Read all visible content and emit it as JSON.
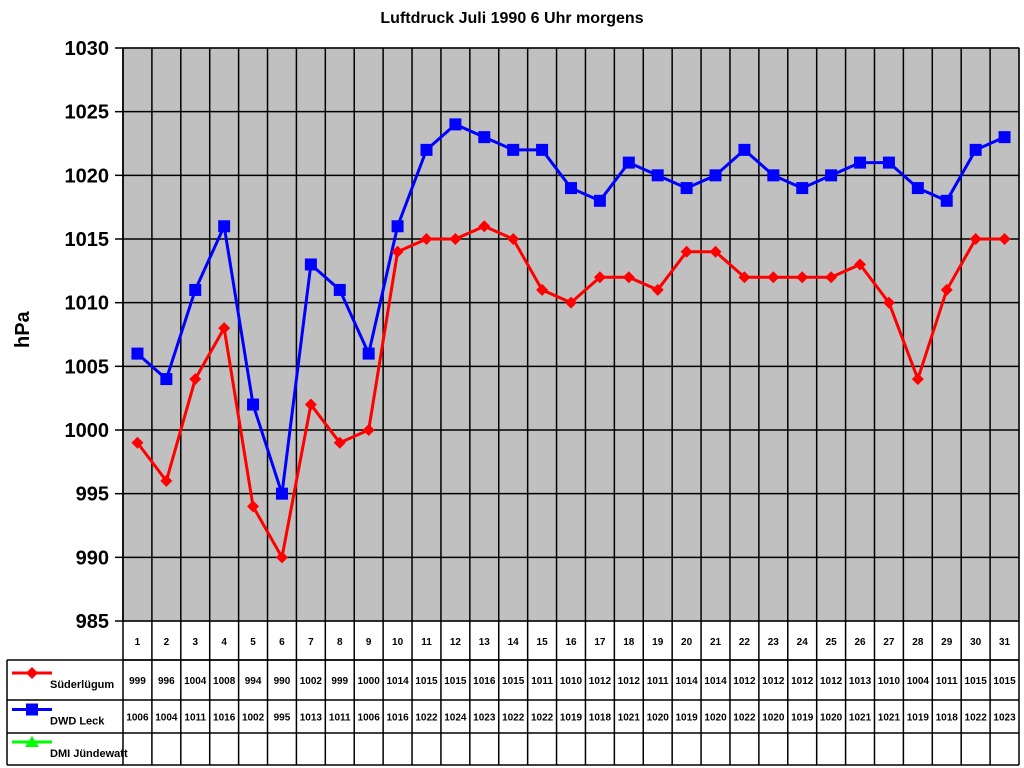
{
  "chart_data": {
    "type": "line",
    "title": "Luftdruck Juli 1990 6 Uhr morgens",
    "xlabel": "",
    "ylabel": "hPa",
    "ylim": [
      985,
      1030
    ],
    "yticks": [
      985,
      990,
      995,
      1000,
      1005,
      1010,
      1015,
      1020,
      1025,
      1030
    ],
    "grid": true,
    "legend_position": "data-table-left",
    "categories": [
      "1",
      "2",
      "3",
      "4",
      "5",
      "6",
      "7",
      "8",
      "9",
      "10",
      "11",
      "12",
      "13",
      "14",
      "15",
      "16",
      "17",
      "18",
      "19",
      "20",
      "21",
      "22",
      "23",
      "24",
      "25",
      "26",
      "27",
      "28",
      "29",
      "30",
      "31"
    ],
    "series": [
      {
        "name": "Süderlügum",
        "color": "#ff0000",
        "marker": "diamond",
        "values": [
          999,
          996,
          1004,
          1008,
          994,
          990,
          1002,
          999,
          1000,
          1014,
          1015,
          1015,
          1016,
          1015,
          1011,
          1010,
          1012,
          1012,
          1011,
          1014,
          1014,
          1012,
          1012,
          1012,
          1012,
          1013,
          1010,
          1004,
          1011,
          1015,
          1015
        ]
      },
      {
        "name": "DWD Leck",
        "color": "#0000ff",
        "marker": "square",
        "values": [
          1006,
          1004,
          1011,
          1016,
          1002,
          995,
          1013,
          1011,
          1006,
          1016,
          1022,
          1024,
          1023,
          1022,
          1022,
          1019,
          1018,
          1021,
          1020,
          1019,
          1020,
          1022,
          1020,
          1019,
          1020,
          1021,
          1021,
          1019,
          1018,
          1022,
          1023
        ]
      },
      {
        "name": "DMI Jündewatt",
        "color": "#00ff00",
        "marker": "triangle",
        "values": []
      }
    ]
  },
  "colors": {
    "plot_bg": "#c0c0c0",
    "grid": "#000000"
  }
}
